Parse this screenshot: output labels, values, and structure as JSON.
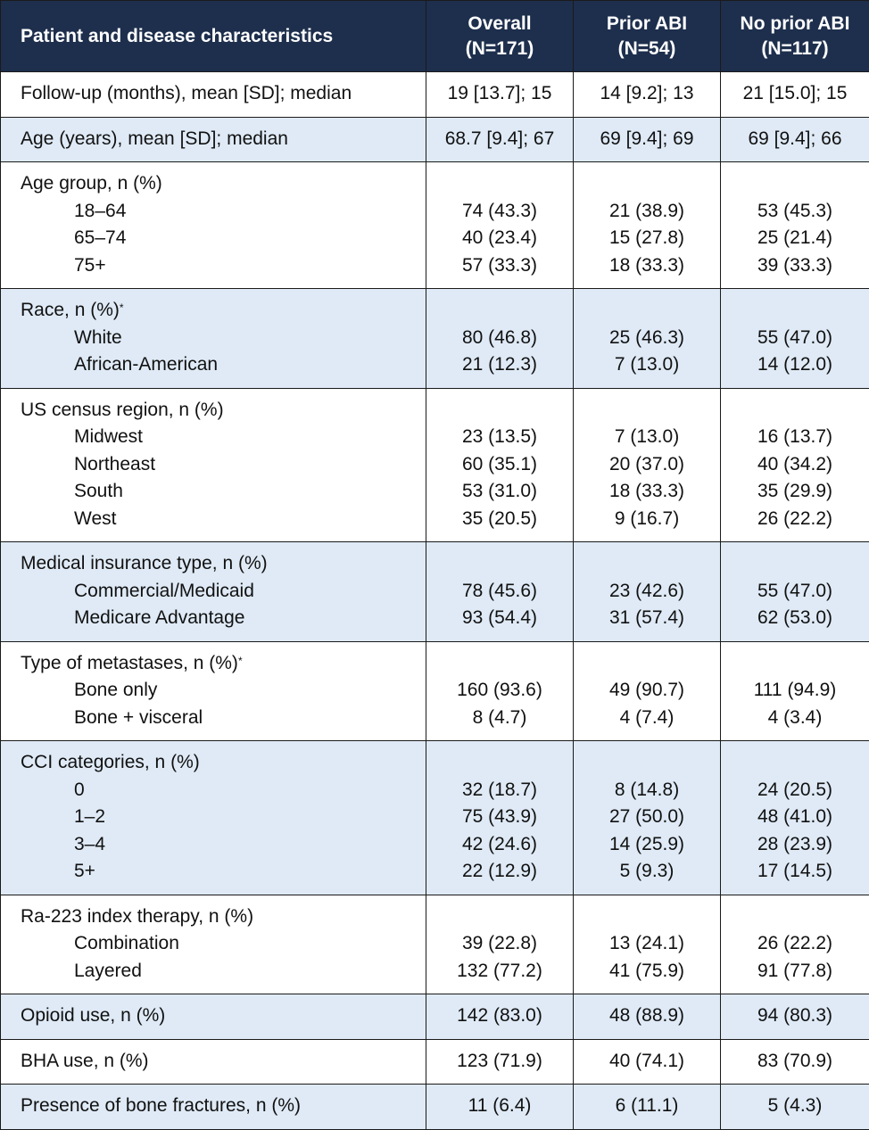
{
  "header": {
    "col0": "Patient and disease characteristics",
    "groups": [
      {
        "name": "Overall",
        "n": "(N=171)"
      },
      {
        "name": "Prior ABI",
        "n": "(N=54)"
      },
      {
        "name": "No prior ABI",
        "n": "(N=117)"
      }
    ]
  },
  "colors": {
    "header_bg": "#1e2f4d",
    "header_text": "#ffffff",
    "shade_bg": "#dfeaf6",
    "border": "#1a1a1a"
  },
  "sections": [
    {
      "title": "Follow-up (months), mean [SD]; median",
      "footnote": "",
      "shaded": false,
      "values": [
        "19 [13.7]; 15",
        "14 [9.2]; 13",
        "21 [15.0]; 15"
      ],
      "rows": []
    },
    {
      "title": "Age (years), mean [SD]; median",
      "footnote": "",
      "shaded": true,
      "values": [
        "68.7 [9.4]; 67",
        "69 [9.4]; 69",
        "69 [9.4]; 66"
      ],
      "rows": []
    },
    {
      "title": "Age group, n (%)",
      "footnote": "",
      "shaded": false,
      "values": null,
      "rows": [
        {
          "label": "18–64",
          "values": [
            "74 (43.3)",
            "21 (38.9)",
            "53 (45.3)"
          ]
        },
        {
          "label": "65–74",
          "values": [
            "40 (23.4)",
            "15 (27.8)",
            "25 (21.4)"
          ]
        },
        {
          "label": "75+",
          "values": [
            "57 (33.3)",
            "18 (33.3)",
            "39 (33.3)"
          ]
        }
      ]
    },
    {
      "title": "Race, n (%)",
      "footnote": "*",
      "shaded": true,
      "values": null,
      "rows": [
        {
          "label": "White",
          "values": [
            "80 (46.8)",
            "25 (46.3)",
            "55 (47.0)"
          ]
        },
        {
          "label": "African-American",
          "values": [
            "21 (12.3)",
            "7 (13.0)",
            "14 (12.0)"
          ]
        }
      ]
    },
    {
      "title": "US census region, n (%)",
      "footnote": "",
      "shaded": false,
      "values": null,
      "rows": [
        {
          "label": "Midwest",
          "values": [
            "23 (13.5)",
            "7 (13.0)",
            "16 (13.7)"
          ]
        },
        {
          "label": "Northeast",
          "values": [
            "60 (35.1)",
            "20 (37.0)",
            "40 (34.2)"
          ]
        },
        {
          "label": "South",
          "values": [
            "53 (31.0)",
            "18 (33.3)",
            "35 (29.9)"
          ]
        },
        {
          "label": "West",
          "values": [
            "35 (20.5)",
            "9 (16.7)",
            "26 (22.2)"
          ]
        }
      ]
    },
    {
      "title": "Medical insurance type, n (%)",
      "footnote": "",
      "shaded": true,
      "values": null,
      "rows": [
        {
          "label": "Commercial/Medicaid",
          "values": [
            "78 (45.6)",
            "23 (42.6)",
            "55 (47.0)"
          ]
        },
        {
          "label": "Medicare Advantage",
          "values": [
            "93 (54.4)",
            "31 (57.4)",
            "62 (53.0)"
          ]
        }
      ]
    },
    {
      "title": "Type of metastases, n (%)",
      "footnote": "*",
      "shaded": false,
      "values": null,
      "rows": [
        {
          "label": "Bone only",
          "values": [
            "160 (93.6)",
            "49 (90.7)",
            "111 (94.9)"
          ]
        },
        {
          "label": "Bone + visceral",
          "values": [
            "8 (4.7)",
            "4 (7.4)",
            "4 (3.4)"
          ]
        }
      ]
    },
    {
      "title": "CCI categories, n (%)",
      "footnote": "",
      "shaded": true,
      "values": null,
      "rows": [
        {
          "label": "0",
          "values": [
            "32 (18.7)",
            "8 (14.8)",
            "24 (20.5)"
          ]
        },
        {
          "label": "1–2",
          "values": [
            "75 (43.9)",
            "27 (50.0)",
            "48 (41.0)"
          ]
        },
        {
          "label": "3–4",
          "values": [
            "42 (24.6)",
            "14 (25.9)",
            "28 (23.9)"
          ]
        },
        {
          "label": "5+",
          "values": [
            "22 (12.9)",
            "5 (9.3)",
            "17 (14.5)"
          ]
        }
      ]
    },
    {
      "title": "Ra-223 index therapy, n (%)",
      "footnote": "",
      "shaded": false,
      "values": null,
      "rows": [
        {
          "label": "Combination",
          "values": [
            "39 (22.8)",
            "13 (24.1)",
            "26 (22.2)"
          ]
        },
        {
          "label": "Layered",
          "values": [
            "132 (77.2)",
            "41 (75.9)",
            "91 (77.8)"
          ]
        }
      ]
    },
    {
      "title": "Opioid use, n (%)",
      "footnote": "",
      "shaded": true,
      "values": [
        "142 (83.0)",
        "48 (88.9)",
        "94 (80.3)"
      ],
      "rows": []
    },
    {
      "title": "BHA use, n (%)",
      "footnote": "",
      "shaded": false,
      "values": [
        "123 (71.9)",
        "40 (74.1)",
        "83 (70.9)"
      ],
      "rows": []
    },
    {
      "title": "Presence of bone fractures, n (%)",
      "footnote": "",
      "shaded": true,
      "values": [
        "11 (6.4)",
        "6 (11.1)",
        "5 (4.3)"
      ],
      "rows": []
    }
  ]
}
